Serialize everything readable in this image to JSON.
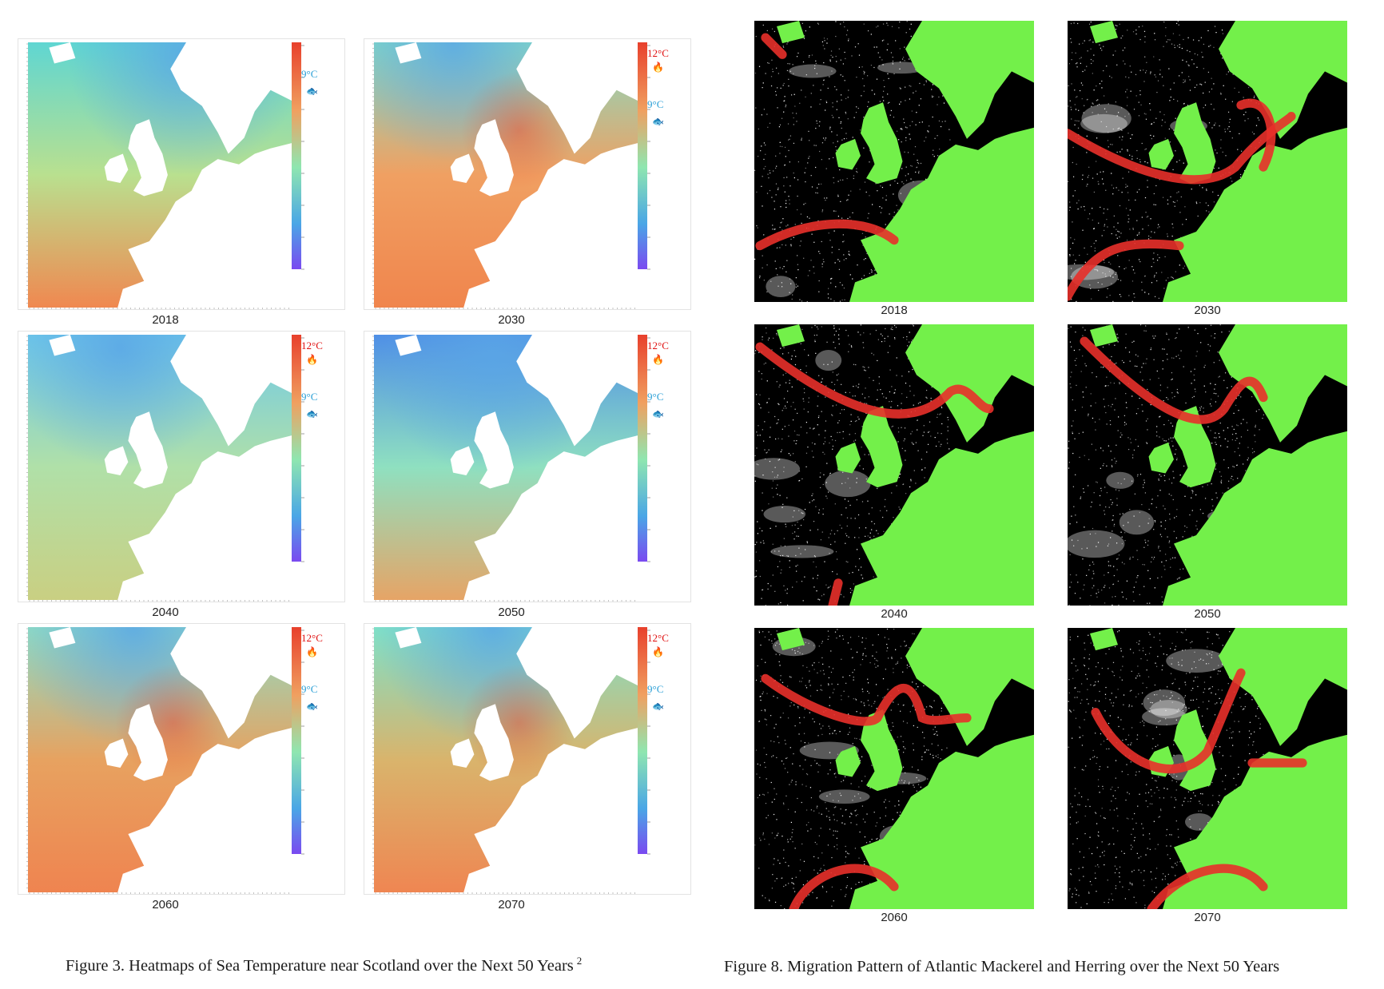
{
  "left_figure": {
    "caption": "Figure 3. Heatmaps of Sea Temperature near Scotland over the Next 50 Years",
    "footnote": "2",
    "panels": [
      {
        "year": "2018",
        "hot_label": "",
        "cold_label": "9°C"
      },
      {
        "year": "2030",
        "hot_label": "12°C",
        "cold_label": "9°C"
      },
      {
        "year": "2040",
        "hot_label": "12°C",
        "cold_label": "9°C"
      },
      {
        "year": "2050",
        "hot_label": "12°C",
        "cold_label": "9°C"
      },
      {
        "year": "2060",
        "hot_label": "12°C",
        "cold_label": "9°C"
      },
      {
        "year": "2070",
        "hot_label": "12°C",
        "cold_label": "9°C"
      }
    ]
  },
  "right_figure": {
    "caption": "Figure 8. Migration Pattern of Atlantic Mackerel and Herring over the Next 50 Years",
    "panels": [
      {
        "year": "2018"
      },
      {
        "year": "2030"
      },
      {
        "year": "2040"
      },
      {
        "year": "2050"
      },
      {
        "year": "2060"
      },
      {
        "year": "2070"
      }
    ]
  },
  "colors": {
    "heat_warm": "#ef8a55",
    "heat_hot": "#e8402c",
    "heat_cool": "#7ee0c4",
    "heat_cold": "#5aa6e6",
    "land_white": "#ffffff",
    "map_ocean": "#000000",
    "map_land": "#73f04a",
    "migration_red": "#e8302a",
    "hot_label": "#e01010",
    "cold_label": "#2a9fd6"
  },
  "icons": {
    "hot": "fire-icon",
    "cold": "fish-icon"
  }
}
